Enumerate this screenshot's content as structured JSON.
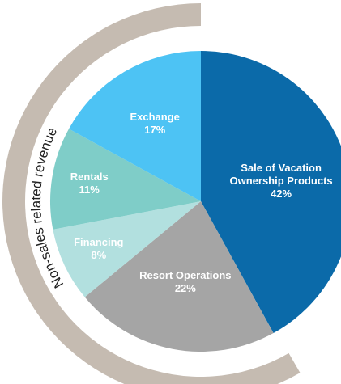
{
  "chart_data": {
    "type": "pie",
    "categories": [
      "Sale of Vacation Ownership Products",
      "Resort Operations",
      "Financing",
      "Rentals",
      "Exchange"
    ],
    "values": [
      42,
      22,
      8,
      11,
      17
    ],
    "value_labels": [
      "42%",
      "22%",
      "8%",
      "11%",
      "17%"
    ],
    "colors": [
      "#0b6aa9",
      "#a5a5a5",
      "#b2e0df",
      "#7fcdc8",
      "#4dc3f4"
    ],
    "annotation": "Non-sales related revenue"
  }
}
